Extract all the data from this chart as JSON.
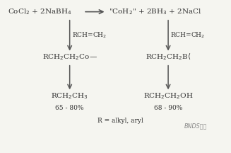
{
  "bg_color": "#f5f5f0",
  "text_color": "#333333",
  "arrow_color": "#555555",
  "top_eq": "CoCl₂ + 2NaBH₄  —→  \"CoH₂\" +  2BH₃  +  2NaCl",
  "left_label1": "RCH=CH₂",
  "right_label1": "RCH=CH₂",
  "left_mid": "RCH₂CH₂Co—",
  "right_mid": "RCH₂CH₂B‹",
  "left_product": "RCH₂CH₃",
  "right_product": "RCH₂CH₂OH",
  "left_yield": "65 - 80%",
  "right_yield": "68 - 90%",
  "r_note": "R = alkyl, aryl",
  "watermark": "BNDS化学"
}
